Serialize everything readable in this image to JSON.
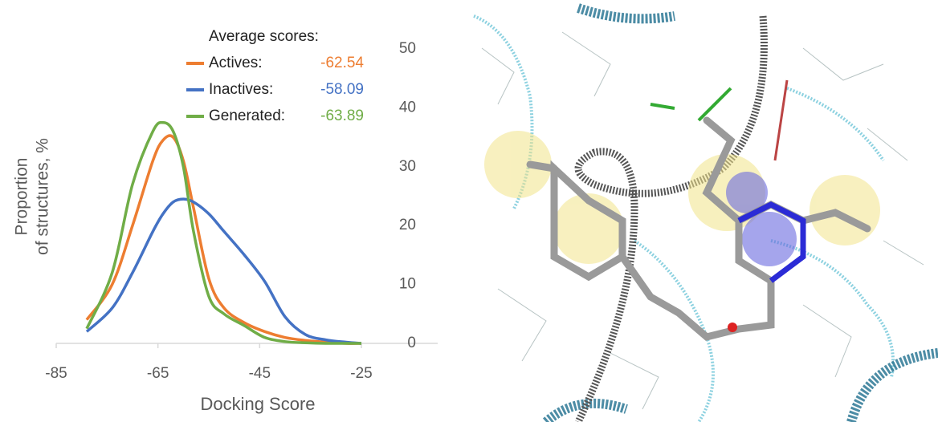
{
  "chart_data": {
    "type": "line",
    "xlabel": "Docking Score",
    "ylabel": [
      "Proportion",
      "of structures, %"
    ],
    "legend_title": "Average scores:",
    "xlim": [
      -85,
      -10
    ],
    "xticks": [
      -85,
      -65,
      -45,
      -25
    ],
    "ylim": [
      0,
      50
    ],
    "yticks": [
      0,
      10,
      20,
      30,
      40,
      50
    ],
    "x": [
      -79,
      -74,
      -70,
      -66,
      -64,
      -62,
      -60,
      -58,
      -55,
      -52,
      -48,
      -44,
      -40,
      -36,
      -32,
      -28,
      -25
    ],
    "series": [
      {
        "name": "Actives:",
        "average": -62.54,
        "color": "#ed7d31",
        "values": [
          4,
          10,
          20,
          31,
          34.5,
          35,
          31,
          23,
          11,
          6,
          3.5,
          2,
          1,
          0.5,
          0.2,
          0,
          0
        ]
      },
      {
        "name": "Inactives:",
        "average": -58.09,
        "color": "#4472c4",
        "values": [
          2,
          6,
          12,
          19,
          22,
          24,
          24.5,
          24,
          22,
          19,
          15,
          10.5,
          4.5,
          1.5,
          0.6,
          0.2,
          0
        ]
      },
      {
        "name": "Generated:",
        "average": -63.89,
        "color": "#70ad47",
        "values": [
          2.5,
          12,
          27,
          36,
          37.5,
          36,
          30,
          19,
          8,
          5,
          3,
          1,
          0.3,
          0.1,
          0,
          0,
          0
        ]
      }
    ]
  }
}
